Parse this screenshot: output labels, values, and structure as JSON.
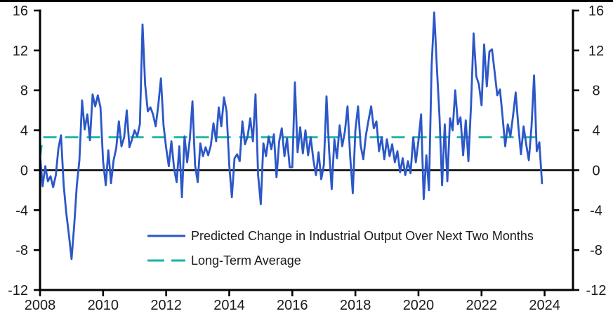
{
  "page": {
    "background_color": "#ffffff",
    "top_border_color": "#000000",
    "axis_color": "#000000",
    "text_color": "#1a1a1a"
  },
  "chart_data": {
    "type": "line",
    "title": "",
    "xlabel": "",
    "ylabel": "",
    "grid": false,
    "zero_line": true,
    "x_axis": {
      "tick_labels": [
        "2008",
        "2010",
        "2012",
        "2014",
        "2016",
        "2018",
        "2020",
        "2022",
        "2024"
      ],
      "months_per_tick": 24,
      "start": "2008-01",
      "end": "2024-01"
    },
    "y_axis": {
      "ticks": [
        -12,
        -8,
        -4,
        0,
        4,
        8,
        12,
        16
      ],
      "range": [
        -12,
        16
      ],
      "mirrored_right_axis": true
    },
    "legend": {
      "position": "inside-bottom-left"
    },
    "series": [
      {
        "name": "Predicted Change in Industrial Output Over Next Two Months",
        "color": "#2b57c8",
        "line_style": "solid",
        "frequency": "monthly",
        "start": "2008-01",
        "end": "2023-12",
        "values": [
          1.5,
          -1.6,
          0.4,
          -1.1,
          -0.6,
          -1.7,
          -0.5,
          2.2,
          3.5,
          -1.5,
          -4.3,
          -6.5,
          -8.9,
          -5.5,
          -1.5,
          1.0,
          7.0,
          4.1,
          5.6,
          3.0,
          7.6,
          6.4,
          7.5,
          6.3,
          0.9,
          -1.5,
          2.0,
          -1.3,
          1.0,
          2.2,
          4.9,
          2.4,
          3.3,
          6.0,
          2.3,
          3.1,
          4.0,
          3.4,
          4.6,
          14.6,
          8.6,
          5.9,
          6.3,
          5.6,
          4.4,
          6.5,
          9.2,
          4.5,
          2.2,
          0.4,
          2.9,
          0.2,
          -1.2,
          2.4,
          -2.7,
          3.4,
          0.8,
          3.1,
          6.9,
          0.5,
          -1.2,
          2.7,
          1.4,
          2.3,
          1.5,
          2.5,
          4.7,
          2.9,
          6.3,
          4.4,
          7.3,
          5.9,
          0.5,
          -2.7,
          1.2,
          1.6,
          0.9,
          4.9,
          2.6,
          3.4,
          5.2,
          2.9,
          7.6,
          -0.5,
          -3.4,
          2.7,
          1.4,
          3.4,
          2.1,
          3.6,
          -0.7,
          2.9,
          4.2,
          1.4,
          3.2,
          0.3,
          0.3,
          8.8,
          1.8,
          4.3,
          1.7,
          4.0,
          1.5,
          3.3,
          1.1,
          -0.5,
          1.8,
          -0.9,
          0.5,
          7.4,
          2.0,
          -1.9,
          3.1,
          1.2,
          4.5,
          2.4,
          3.9,
          6.4,
          1.5,
          -2.3,
          4.0,
          6.4,
          2.5,
          1.1,
          3.5,
          5.0,
          6.4,
          4.2,
          4.9,
          1.9,
          3.3,
          1.1,
          3.1,
          1.4,
          2.6,
          0.8,
          1.9,
          -0.2,
          1.2,
          -0.5,
          0.9,
          -0.3,
          3.3,
          0.8,
          3.0,
          5.6,
          -2.9,
          1.5,
          -2.0,
          10.5,
          15.8,
          10.4,
          5.4,
          -1.5,
          4.6,
          -1.1,
          5.2,
          4.0,
          8.0,
          4.6,
          5.3,
          1.5,
          5.0,
          0.9,
          6.5,
          13.7,
          9.4,
          8.6,
          6.5,
          12.6,
          8.4,
          11.9,
          12.1,
          9.8,
          7.5,
          8.1,
          5.4,
          2.4,
          4.6,
          3.4,
          5.5,
          7.8,
          4.4,
          1.6,
          4.4,
          2.6,
          1.0,
          4.3,
          9.5,
          1.9,
          2.8,
          -1.3
        ]
      },
      {
        "name": "Long-Term Average",
        "color": "#17b4a3",
        "line_style": "dashed",
        "value": 3.3,
        "start_value": 1.2,
        "start": "2008-01",
        "end": "2023-10"
      }
    ]
  }
}
